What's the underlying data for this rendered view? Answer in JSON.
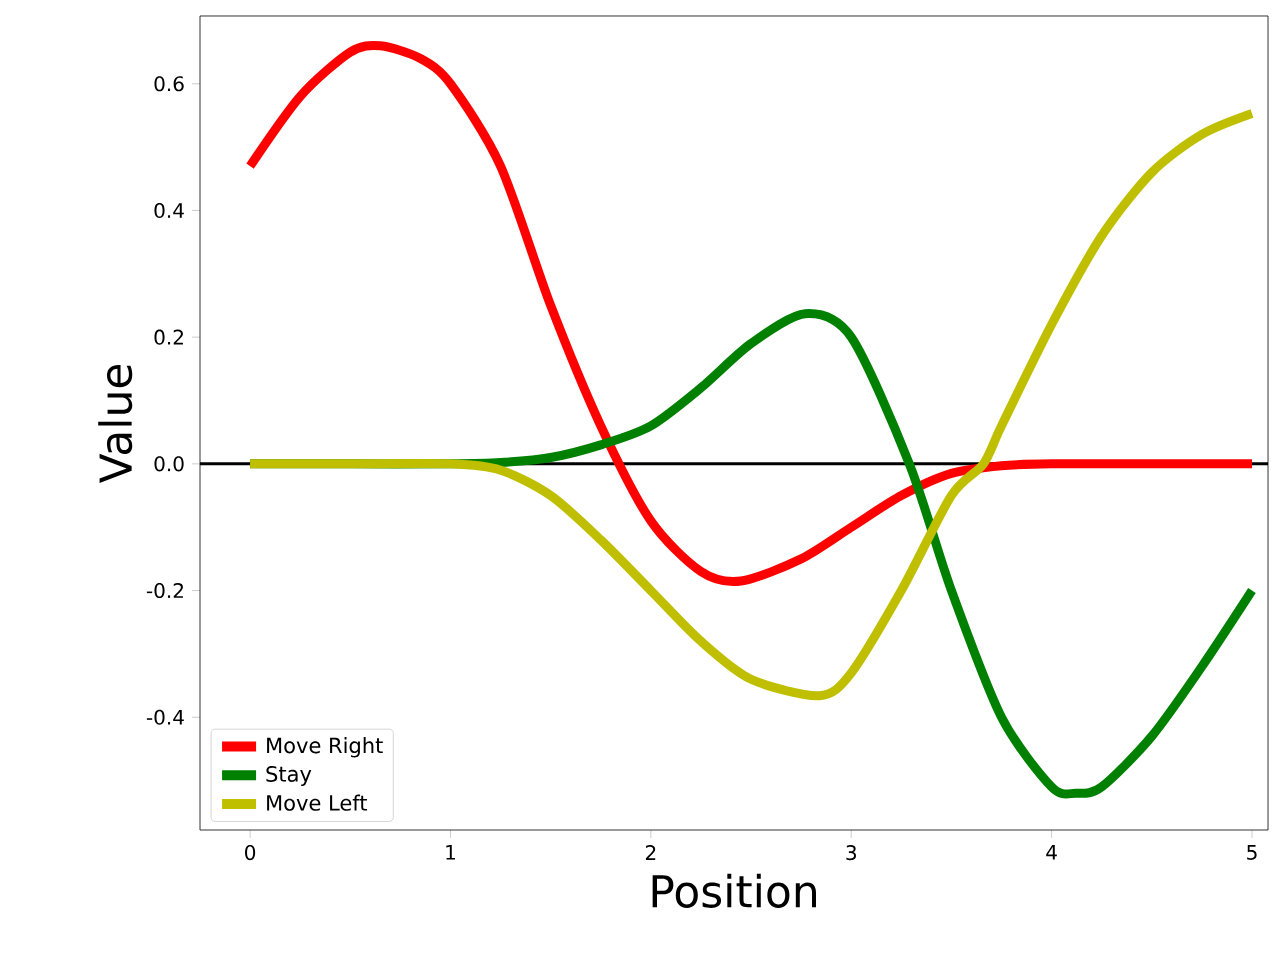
{
  "chart_data": {
    "type": "line",
    "xlabel": "Position",
    "ylabel": "Value",
    "xlim": [
      -0.25,
      5.08
    ],
    "ylim": [
      -0.578,
      0.707
    ],
    "xticks": [
      0,
      1,
      2,
      3,
      4,
      5
    ],
    "yticks": [
      -0.4,
      -0.2,
      {
        "value": 0,
        "label": "0.0"
      },
      0.2,
      0.4,
      0.6
    ],
    "legend": "bottom left",
    "grid": false,
    "marker": "none",
    "line_style": "solid",
    "ref_lines": [
      {
        "axis": "y",
        "value": 0,
        "color": "#000000"
      }
    ],
    "series": [
      {
        "name": "Move Right",
        "color": "#ff0000",
        "x": [
          0,
          0.25,
          0.5,
          0.65,
          0.85,
          1.0,
          1.25,
          1.5,
          1.75,
          2.0,
          2.25,
          2.45,
          2.75,
          3.0,
          3.25,
          3.5,
          3.75,
          4.0,
          4.5,
          5.0
        ],
        "values": [
          0.47,
          0.58,
          0.65,
          0.66,
          0.64,
          0.6,
          0.47,
          0.25,
          0.06,
          -0.09,
          -0.17,
          -0.185,
          -0.15,
          -0.1,
          -0.05,
          -0.015,
          -0.003,
          0,
          0,
          0
        ]
      },
      {
        "name": "Stay",
        "color": "#008000",
        "x": [
          0,
          0.5,
          1.0,
          1.25,
          1.5,
          1.75,
          2.0,
          2.25,
          2.5,
          2.77,
          3.0,
          3.29,
          3.5,
          3.75,
          4.0,
          4.12,
          4.25,
          4.5,
          4.75,
          5.0
        ],
        "values": [
          0,
          0,
          0,
          0.002,
          0.01,
          0.03,
          0.06,
          0.12,
          0.19,
          0.237,
          0.2,
          0,
          -0.2,
          -0.4,
          -0.51,
          -0.52,
          -0.51,
          -0.43,
          -0.32,
          -0.2
        ]
      },
      {
        "name": "Move Left",
        "color": "#bfbf00",
        "x": [
          0,
          0.5,
          1.0,
          1.25,
          1.5,
          1.75,
          2.0,
          2.25,
          2.5,
          2.84,
          3.0,
          3.25,
          3.5,
          3.66,
          3.75,
          4.0,
          4.25,
          4.5,
          4.75,
          5.0
        ],
        "values": [
          0,
          0,
          0,
          -0.01,
          -0.05,
          -0.12,
          -0.2,
          -0.28,
          -0.34,
          -0.366,
          -0.33,
          -0.2,
          -0.05,
          0,
          0.06,
          0.22,
          0.36,
          0.46,
          0.52,
          0.553
        ]
      }
    ]
  }
}
